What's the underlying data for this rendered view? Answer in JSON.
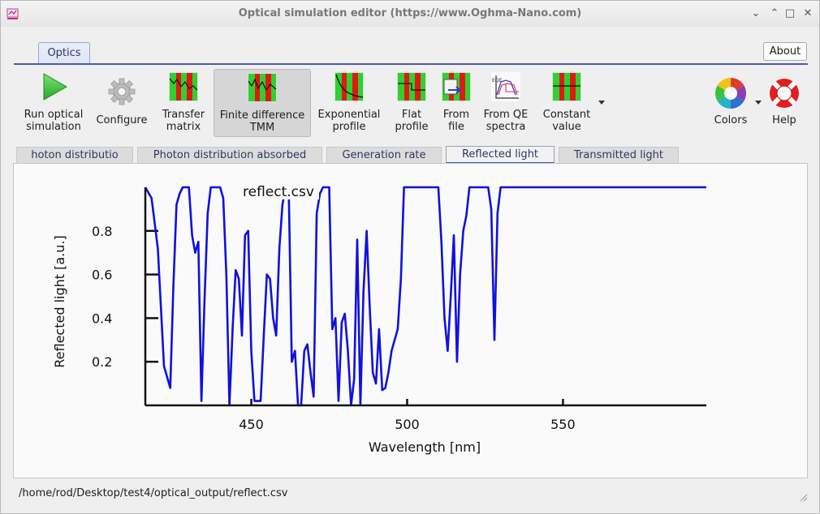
{
  "window": {
    "title": "Optical simulation editor (https://www.Oghma-Nano.com)",
    "minimize_glyph": "⌄",
    "up_glyph": "⌃",
    "maximize_glyph": "□",
    "close_glyph": "✕"
  },
  "ribbon": {
    "tab_label": "Optics",
    "about_label": "About",
    "tools": [
      {
        "label": "Run optical\nsimulation",
        "icon": "play-icon"
      },
      {
        "label": "Configure",
        "icon": "gear-icon"
      },
      {
        "label": "Transfer\nmatrix",
        "icon": "transfer-matrix-icon"
      },
      {
        "label": "Finite difference\nTMM",
        "icon": "finite-difference-icon"
      },
      {
        "label": "Exponential\nprofile",
        "icon": "exponential-profile-icon"
      },
      {
        "label": "Flat\nprofile",
        "icon": "flat-profile-icon"
      },
      {
        "label": "From\nfile",
        "icon": "from-file-icon"
      },
      {
        "label": "From QE\nspectra",
        "icon": "qe-spectra-icon"
      },
      {
        "label": "Constant\nvalue",
        "icon": "constant-value-icon"
      },
      {
        "label": "Colors",
        "icon": "color-wheel-icon"
      },
      {
        "label": "Help",
        "icon": "lifebuoy-icon"
      }
    ],
    "colors": {
      "accent": "#4a5aa8",
      "green": "#2fd12f",
      "red": "#e01818",
      "play": "#3cc23c"
    }
  },
  "plot_tabs": [
    {
      "label": "hoton distributio",
      "active": false
    },
    {
      "label": "Photon distribution absorbed",
      "active": false
    },
    {
      "label": "Generation rate",
      "active": false
    },
    {
      "label": "Reflected light",
      "active": true
    },
    {
      "label": "Transmitted light",
      "active": false
    }
  ],
  "status_path": "/home/rod/Desktop/test4/optical_output/reflect.csv",
  "chart_data": {
    "type": "line",
    "title": "reflect.csv",
    "xlabel": "Wavelength [nm]",
    "ylabel": "Reflected light [a.u.]",
    "xlim": [
      416,
      596
    ],
    "ylim": [
      0,
      1.0
    ],
    "xticks": [
      450,
      500,
      550
    ],
    "yticks": [
      0.2,
      0.4,
      0.6,
      0.8
    ],
    "line_color": "#1010e0",
    "grid": false,
    "series": [
      {
        "x": [
          416,
          418,
          420,
          422,
          424,
          425,
          426,
          427,
          428,
          429,
          430,
          431,
          432,
          433,
          434,
          435,
          436,
          437,
          438,
          439,
          440,
          441,
          442,
          443,
          444,
          445,
          446,
          447,
          448,
          449,
          450,
          451,
          452,
          453,
          454,
          455,
          456,
          457,
          458,
          459,
          460,
          461,
          462,
          463,
          464,
          465,
          466,
          467,
          468,
          469,
          470,
          471,
          472,
          473,
          474,
          475,
          476,
          477,
          478,
          479,
          480,
          481,
          482,
          483,
          484,
          485,
          486,
          487,
          488,
          489,
          490,
          491,
          492,
          493,
          494,
          495,
          496,
          497,
          498,
          499,
          500,
          501,
          502,
          503,
          504,
          505,
          506,
          507,
          508,
          509,
          510,
          511,
          512,
          513,
          514,
          515,
          516,
          517,
          518,
          519,
          520,
          521,
          522,
          523,
          524,
          525,
          526,
          527,
          528,
          529,
          530,
          531,
          532,
          533,
          534,
          535,
          536,
          537,
          538,
          539,
          540,
          541,
          542,
          543,
          544,
          545,
          546,
          547,
          548,
          549,
          550,
          551,
          552,
          553,
          554,
          555,
          556,
          557,
          558,
          559,
          560,
          561,
          562,
          563,
          564,
          565,
          566,
          567,
          568,
          569,
          570,
          571,
          572,
          574,
          576,
          578,
          580,
          582,
          584,
          586,
          588,
          590,
          592,
          594,
          596
        ],
        "y": [
          1.0,
          0.95,
          0.72,
          0.18,
          0.08,
          0.55,
          0.92,
          0.97,
          1.0,
          1.0,
          1.0,
          0.78,
          0.7,
          0.75,
          0.02,
          0.48,
          0.88,
          1.0,
          1.0,
          1.0,
          1.0,
          0.95,
          0.6,
          0.0,
          0.35,
          0.62,
          0.58,
          0.32,
          0.78,
          0.8,
          0.25,
          0.02,
          0.02,
          0.02,
          0.32,
          0.6,
          0.58,
          0.4,
          0.32,
          0.72,
          0.92,
          1.0,
          1.0,
          0.2,
          0.25,
          0.0,
          0.0,
          0.25,
          0.28,
          0.15,
          0.04,
          0.88,
          0.97,
          1.0,
          1.0,
          1.0,
          0.35,
          0.4,
          0.02,
          0.38,
          0.42,
          0.25,
          0.0,
          0.12,
          0.76,
          0.0,
          0.52,
          0.8,
          0.45,
          0.15,
          0.1,
          0.35,
          0.07,
          0.08,
          0.15,
          0.25,
          0.3,
          0.35,
          0.58,
          1.0,
          1.0,
          1.0,
          1.0,
          1.0,
          1.0,
          1.0,
          1.0,
          1.0,
          1.0,
          1.0,
          1.0,
          0.75,
          0.4,
          0.25,
          0.5,
          0.78,
          0.2,
          0.6,
          0.8,
          0.87,
          1.0,
          1.0,
          1.0,
          1.0,
          1.0,
          1.0,
          1.0,
          0.9,
          0.3,
          0.88,
          1.0,
          1.0,
          1.0,
          1.0,
          1.0,
          1.0,
          1.0,
          1.0,
          1.0,
          1.0,
          1.0,
          1.0,
          1.0,
          1.0,
          1.0,
          1.0,
          1.0,
          1.0,
          1.0,
          1.0,
          1.0,
          1.0,
          1.0,
          1.0,
          1.0,
          1.0,
          1.0,
          1.0,
          1.0,
          1.0,
          1.0,
          1.0,
          1.0,
          1.0,
          1.0,
          1.0,
          1.0,
          1.0,
          1.0,
          1.0,
          1.0,
          1.0,
          1.0,
          1.0,
          1.0,
          1.0,
          1.0,
          1.0,
          1.0,
          1.0,
          1.0,
          1.0,
          1.0,
          1.0,
          1.0
        ]
      }
    ]
  }
}
